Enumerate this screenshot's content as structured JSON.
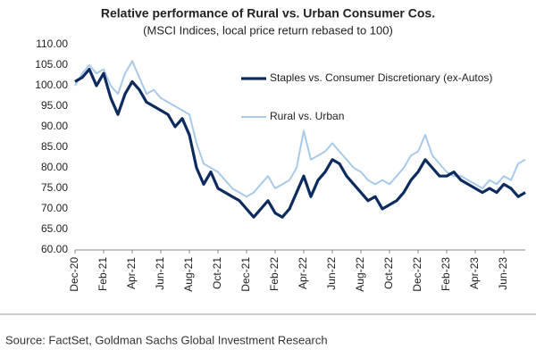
{
  "chart_data": {
    "type": "line",
    "title": "Relative performance of Rural vs. Urban Consumer Cos.",
    "subtitle": "(MSCI Indices, local price return rebased to 100)",
    "source": "Source: FactSet, Goldman Sachs Global Investment Research",
    "categories": [
      "Dec-20",
      null,
      null,
      null,
      "Feb-21",
      null,
      null,
      null,
      "Apr-21",
      null,
      null,
      null,
      "Jun-21",
      null,
      null,
      null,
      "Aug-21",
      null,
      null,
      null,
      "Oct-21",
      null,
      null,
      null,
      "Dec-21",
      null,
      null,
      null,
      "Feb-22",
      null,
      null,
      null,
      "Apr-22",
      null,
      null,
      null,
      "Jun-22",
      null,
      null,
      null,
      "Aug-22",
      null,
      null,
      null,
      "Oct-22",
      null,
      null,
      null,
      "Dec-22",
      null,
      null,
      null,
      "Feb-23",
      null,
      null,
      null,
      "Apr-23",
      null,
      null,
      null,
      "Jun-23",
      null,
      null,
      null
    ],
    "series": [
      {
        "name": "Staples vs. Consumer Discretionary (ex-Autos)",
        "color": "#0d2b5e",
        "values": [
          101,
          102,
          104,
          100,
          103,
          97,
          93,
          98,
          101,
          99,
          96,
          95,
          94,
          93,
          90,
          92,
          88,
          80,
          76,
          79,
          75,
          74,
          73,
          72,
          70,
          68,
          70,
          72,
          69,
          68,
          70,
          74,
          78,
          73,
          77,
          79,
          82,
          81,
          78,
          76,
          74,
          72,
          73,
          70,
          71,
          72,
          74,
          77,
          79,
          82,
          80,
          78,
          78,
          79,
          77,
          76,
          75,
          74,
          75,
          74,
          76,
          75,
          73,
          74
        ]
      },
      {
        "name": "Rural vs. Urban",
        "color": "#a9c9e8",
        "values": [
          100,
          103,
          105,
          103,
          104,
          100,
          98,
          103,
          106,
          102,
          98,
          99,
          97,
          96,
          95,
          94,
          93,
          86,
          81,
          80,
          79,
          77,
          75,
          74,
          73,
          74,
          76,
          78,
          75,
          76,
          77,
          80,
          89,
          82,
          83,
          84,
          86,
          84,
          82,
          80,
          79,
          77,
          76,
          77,
          76,
          78,
          80,
          83,
          84,
          88,
          83,
          81,
          79,
          78,
          78,
          77,
          76,
          75,
          77,
          76,
          78,
          77,
          81,
          82
        ]
      }
    ],
    "ylim": [
      60,
      110
    ],
    "yticks": [
      {
        "value": 60,
        "label": "60.00"
      },
      {
        "value": 65,
        "label": "65.00"
      },
      {
        "value": 70,
        "label": "70.00"
      },
      {
        "value": 75,
        "label": "75.00"
      },
      {
        "value": 80,
        "label": "80.00"
      },
      {
        "value": 85,
        "label": "85.00"
      },
      {
        "value": 90,
        "label": "90.00"
      },
      {
        "value": 95,
        "label": "95.00"
      },
      {
        "value": 100,
        "label": "100.00"
      },
      {
        "value": 105,
        "label": "105.00"
      },
      {
        "value": 110,
        "label": "110.00"
      }
    ],
    "grid": false
  }
}
